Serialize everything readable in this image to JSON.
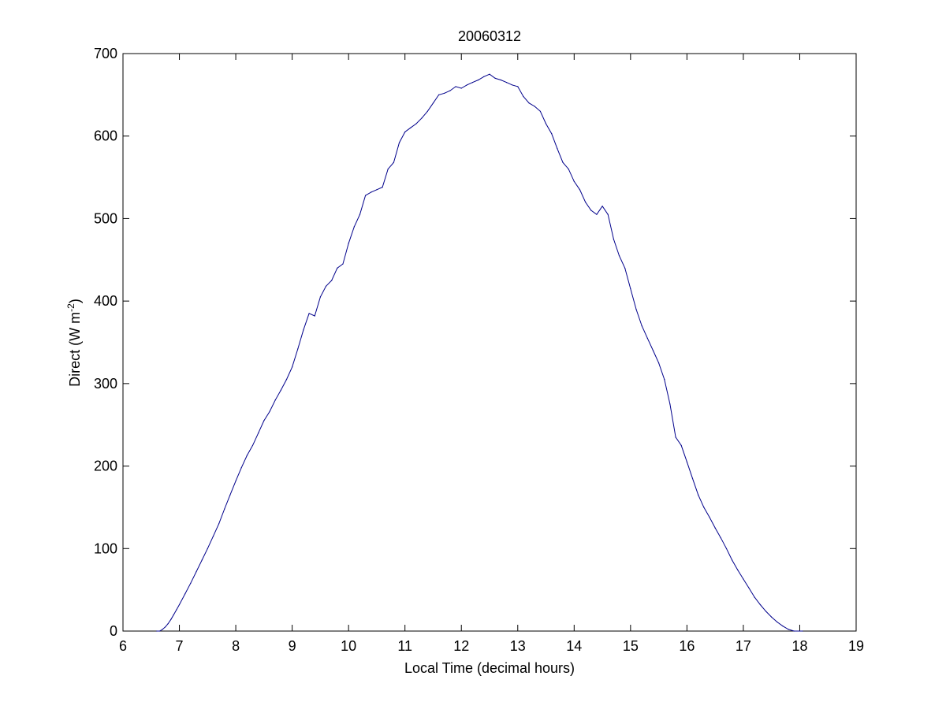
{
  "chart_data": {
    "type": "line",
    "title": "20060312",
    "xlabel": "Local Time (decimal hours)",
    "ylabel_main": "Direct (W m",
    "ylabel_sup": "-2",
    "ylabel_close": ")",
    "xlim": [
      6,
      19
    ],
    "ylim": [
      0,
      700
    ],
    "xticks": [
      6,
      7,
      8,
      9,
      10,
      11,
      12,
      13,
      14,
      15,
      16,
      17,
      18,
      19
    ],
    "yticks": [
      0,
      100,
      200,
      300,
      400,
      500,
      600,
      700
    ],
    "grid": false,
    "line_color": "#00008B",
    "series": [
      {
        "x": [
          6.6,
          6.65,
          6.7,
          6.75,
          6.8,
          6.85,
          6.9,
          6.95,
          7.0,
          7.1,
          7.2,
          7.3,
          7.4,
          7.5,
          7.6,
          7.7,
          7.8,
          7.9,
          8.0,
          8.1,
          8.2,
          8.3,
          8.4,
          8.5,
          8.6,
          8.7,
          8.8,
          8.9,
          9.0,
          9.1,
          9.2,
          9.3,
          9.4,
          9.5,
          9.6,
          9.7,
          9.8,
          9.9,
          10.0,
          10.1,
          10.2,
          10.3,
          10.4,
          10.5,
          10.6,
          10.7,
          10.8,
          10.9,
          11.0,
          11.1,
          11.2,
          11.3,
          11.4,
          11.5,
          11.6,
          11.7,
          11.8,
          11.9,
          12.0,
          12.1,
          12.2,
          12.3,
          12.4,
          12.5,
          12.6,
          12.7,
          12.8,
          12.9,
          13.0,
          13.1,
          13.2,
          13.3,
          13.4,
          13.5,
          13.6,
          13.7,
          13.8,
          13.9,
          14.0,
          14.1,
          14.2,
          14.3,
          14.4,
          14.5,
          14.6,
          14.7,
          14.8,
          14.9,
          15.0,
          15.1,
          15.2,
          15.3,
          15.4,
          15.5,
          15.6,
          15.7,
          15.8,
          15.9,
          16.0,
          16.1,
          16.2,
          16.3,
          16.4,
          16.5,
          16.6,
          16.7,
          16.8,
          16.9,
          17.0,
          17.1,
          17.2,
          17.3,
          17.4,
          17.5,
          17.6,
          17.7,
          17.8,
          17.9,
          18.0,
          18.05
        ],
        "y": [
          0,
          0,
          2,
          5,
          9,
          14,
          20,
          26,
          32,
          45,
          58,
          72,
          86,
          100,
          115,
          130,
          148,
          165,
          182,
          198,
          213,
          225,
          240,
          255,
          266,
          280,
          292,
          305,
          320,
          342,
          365,
          385,
          382,
          405,
          418,
          425,
          440,
          445,
          470,
          490,
          505,
          528,
          532,
          535,
          538,
          560,
          568,
          592,
          605,
          610,
          615,
          622,
          630,
          640,
          650,
          652,
          655,
          660,
          658,
          662,
          665,
          668,
          672,
          675,
          670,
          668,
          665,
          662,
          660,
          648,
          640,
          636,
          630,
          615,
          603,
          585,
          568,
          560,
          545,
          535,
          520,
          510,
          505,
          515,
          505,
          475,
          455,
          440,
          415,
          390,
          370,
          355,
          340,
          325,
          305,
          275,
          235,
          225,
          205,
          185,
          165,
          150,
          138,
          125,
          113,
          100,
          86,
          74,
          63,
          52,
          41,
          32,
          24,
          17,
          11,
          6,
          2,
          0,
          0,
          0
        ]
      }
    ]
  }
}
